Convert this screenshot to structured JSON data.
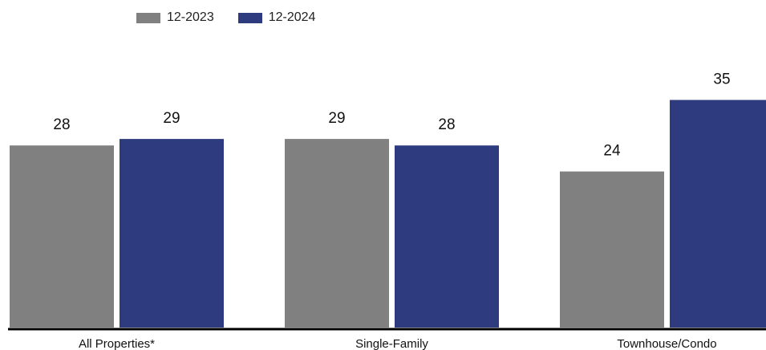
{
  "legend": {
    "items": [
      {
        "label": "12-2023",
        "color": "#808080"
      },
      {
        "label": "12-2024",
        "color": "#2e3b7e"
      }
    ]
  },
  "chart_data": {
    "type": "bar",
    "categories": [
      "All Properties*",
      "Single-Family",
      "Townhouse/Condo"
    ],
    "series": [
      {
        "name": "12-2023",
        "values": [
          28,
          29,
          24
        ],
        "color": "#808080"
      },
      {
        "name": "12-2024",
        "values": [
          29,
          28,
          35
        ],
        "color": "#2e3b7e"
      }
    ],
    "title": "",
    "xlabel": "",
    "ylabel": "",
    "data_labels": true,
    "grid": false,
    "legend_position": "top-left"
  }
}
